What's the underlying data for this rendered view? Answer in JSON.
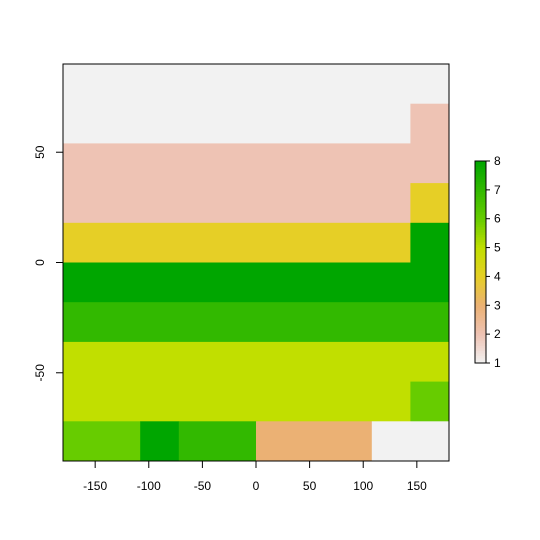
{
  "chart_data": {
    "type": "heatmap",
    "title": "",
    "xlabel": "",
    "ylabel": "",
    "xlim": [
      -180,
      180
    ],
    "ylim": [
      -90,
      90
    ],
    "x_ticks": [
      -150,
      -100,
      -50,
      0,
      50,
      100,
      150
    ],
    "x_tick_labels": [
      "-150",
      "-100",
      "-50",
      "0",
      "50",
      "100",
      "150"
    ],
    "y_ticks": [
      -50,
      0,
      50
    ],
    "y_tick_labels": [
      "-50",
      "0",
      "50"
    ],
    "grid": false,
    "legend": {
      "type": "colorbar",
      "placement": "right",
      "range": [
        1,
        8
      ],
      "ticks": [
        1,
        2,
        3,
        4,
        5,
        6,
        7,
        8
      ],
      "tick_labels": [
        "1",
        "2",
        "3",
        "4",
        "5",
        "6",
        "7",
        "8"
      ]
    },
    "palette": {
      "1": "#F2F2F2",
      "2": "#EEC3B4",
      "3": "#EBB174",
      "4": "#E6CF26",
      "5": "#C1DF00",
      "6": "#67CC00",
      "7": "#32B900",
      "8": "#00A600"
    },
    "cells": [
      {
        "x": [
          -180,
          144
        ],
        "y": [
          54,
          90
        ],
        "value": 1
      },
      {
        "x": [
          144,
          180
        ],
        "y": [
          72,
          90
        ],
        "value": 1
      },
      {
        "x": [
          -180,
          144
        ],
        "y": [
          18,
          54
        ],
        "value": 2
      },
      {
        "x": [
          144,
          180
        ],
        "y": [
          36,
          72
        ],
        "value": 2
      },
      {
        "x": [
          -180,
          144
        ],
        "y": [
          0,
          18
        ],
        "value": 4
      },
      {
        "x": [
          144,
          180
        ],
        "y": [
          18,
          36
        ],
        "value": 4
      },
      {
        "x": [
          144,
          180
        ],
        "y": [
          0,
          18
        ],
        "value": 8
      },
      {
        "x": [
          -180,
          180
        ],
        "y": [
          -18,
          0
        ],
        "value": 8
      },
      {
        "x": [
          -180,
          180
        ],
        "y": [
          -36,
          -18
        ],
        "value": 7
      },
      {
        "x": [
          -180,
          180
        ],
        "y": [
          -54,
          -36
        ],
        "value": 5
      },
      {
        "x": [
          -180,
          144
        ],
        "y": [
          -72,
          -54
        ],
        "value": 5
      },
      {
        "x": [
          144,
          180
        ],
        "y": [
          -72,
          -54
        ],
        "value": 6
      },
      {
        "x": [
          -180,
          -108
        ],
        "y": [
          -90,
          -72
        ],
        "value": 6
      },
      {
        "x": [
          -108,
          -72
        ],
        "y": [
          -90,
          -72
        ],
        "value": 8
      },
      {
        "x": [
          -72,
          0
        ],
        "y": [
          -90,
          -72
        ],
        "value": 7
      },
      {
        "x": [
          0,
          108
        ],
        "y": [
          -90,
          -72
        ],
        "value": 3
      },
      {
        "x": [
          108,
          180
        ],
        "y": [
          -90,
          -72
        ],
        "value": 1
      }
    ]
  }
}
